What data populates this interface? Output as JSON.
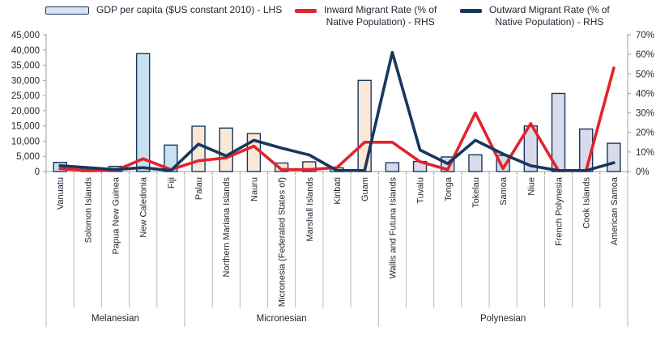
{
  "legend": {
    "gdp": {
      "label": "GDP per capita ($US constant 2010) - LHS"
    },
    "inward": {
      "line1": "Inward Migrant Rate (% of",
      "line2": "Native Population) - RHS"
    },
    "outward": {
      "line1": "Outward Migrant Rate (% of",
      "line2": "Native Population) - RHS"
    }
  },
  "colors": {
    "red_line": "#e3232b",
    "navy_line": "#17375e",
    "bar_border": "#17375e",
    "melanesian_bar": "#c6e2f0",
    "micronesian_bar": "#fbe7d6",
    "polynesian_bar": "#d9dbeb",
    "legend_swatch_fill": "#dde3ee",
    "axis": "#9f9f9f",
    "separator": "#b8b8b8",
    "text": "#1f2633"
  },
  "chart_data": {
    "type": "bar+line combo",
    "title": "",
    "categories": [
      "Vanuatu",
      "Solomon Islands",
      "Papua New Guinea",
      "New Caledonia",
      "Fiji",
      "Palau",
      "Northern Mariana Islands",
      "Nauru",
      "Micronesia (Federated States of)",
      "Marshall Islands",
      "Kiribati",
      "Guam",
      "Wallis and Futuna Islands",
      "Tuvalu",
      "Tonga",
      "Tokelau",
      "Samoa",
      "Niue",
      "French Polynesia",
      "Cook Islands",
      "American Samoa"
    ],
    "groups": [
      {
        "name": "Melanesian",
        "count": 5,
        "bar_fill": "#c6e2f0"
      },
      {
        "name": "Micronesian",
        "count": 7,
        "bar_fill": "#fbe7d6"
      },
      {
        "name": "Polynesian",
        "count": 9,
        "bar_fill": "#d9dbeb"
      }
    ],
    "series": [
      {
        "name": "GDP per capita ($US constant 2010) - LHS",
        "type": "bar",
        "axis": "left",
        "values": [
          3000,
          1400,
          1700,
          38800,
          8700,
          14900,
          14300,
          12500,
          2800,
          3200,
          1200,
          30000,
          2900,
          3300,
          4800,
          5500,
          5300,
          15000,
          25700,
          14000,
          9300
        ]
      },
      {
        "name": "Inward Migrant Rate (% of Native Population) - RHS",
        "type": "line",
        "axis": "right",
        "color": "#e3232b",
        "values": [
          1.5,
          0.5,
          0.5,
          6.5,
          1,
          5.5,
          7,
          13,
          1,
          1,
          2,
          15,
          15,
          5,
          1,
          30,
          1.5,
          24.5,
          0.5,
          0.5,
          53
        ]
      },
      {
        "name": "Outward Migrant Rate (% of Native Population) - RHS",
        "type": "line",
        "axis": "right",
        "color": "#17375e",
        "values": [
          3,
          2,
          1,
          2,
          0.5,
          14,
          8,
          16,
          12,
          8.5,
          0.5,
          0.5,
          61,
          11,
          4,
          16,
          9,
          3,
          0.5,
          0.5,
          4.5
        ]
      }
    ],
    "left_axis": {
      "min": 0,
      "max": 45000,
      "step": 5000,
      "tick_labels": [
        "0",
        "5,000",
        "10,000",
        "15,000",
        "20,000",
        "25,000",
        "30,000",
        "35,000",
        "40,000",
        "45,000"
      ]
    },
    "right_axis": {
      "min": 0,
      "max": 70,
      "step": 10,
      "tick_labels": [
        "0%",
        "10%",
        "20%",
        "30%",
        "40%",
        "50%",
        "60%",
        "70%"
      ]
    },
    "grid": false,
    "legend_position": "top"
  }
}
